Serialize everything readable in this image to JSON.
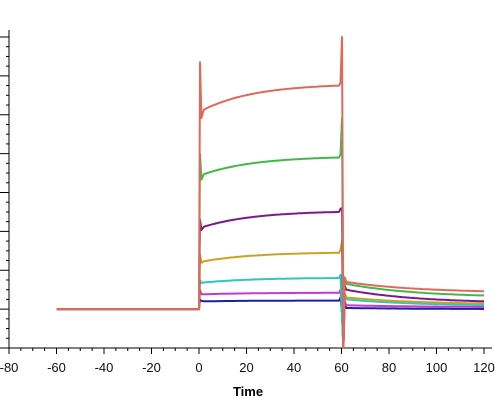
{
  "chart_data": {
    "type": "line",
    "xlabel": "Time",
    "ylabel": "",
    "xlim": [
      -80,
      120
    ],
    "ylim": [
      -1,
      7
    ],
    "grid": false,
    "legend": "none",
    "x_ticks": [
      -80,
      -60,
      -40,
      -20,
      0,
      20,
      40,
      60,
      80,
      100,
      120
    ],
    "x_tick_labels": [
      "-80",
      "-60",
      "-40",
      "-20",
      "0",
      "20",
      "40",
      "60",
      "80",
      "100",
      "120"
    ],
    "y_ticks": [
      -1,
      0,
      1,
      2,
      3,
      4,
      5,
      6,
      7
    ],
    "series": [
      {
        "color": "#1f1fa6",
        "baseline": 0.0,
        "plateau_start": 0.2,
        "plateau_end": 0.22,
        "spike_on": 0.25,
        "spike_off": -0.1,
        "dissoc_start": 0.03,
        "dissoc_end": 0.0
      },
      {
        "color": "#c43ad1",
        "baseline": 0.0,
        "plateau_start": 0.38,
        "plateau_end": 0.42,
        "spike_on": 0.5,
        "spike_off": -0.15,
        "dissoc_start": 0.1,
        "dissoc_end": 0.05
      },
      {
        "color": "#2ec6c6",
        "baseline": 0.0,
        "plateau_start": 0.68,
        "plateau_end": 0.8,
        "spike_on": 0.75,
        "spike_off": -0.2,
        "dissoc_start": 0.25,
        "dissoc_end": 0.08
      },
      {
        "color": "#c9a322",
        "baseline": 0.0,
        "plateau_start": 1.22,
        "plateau_end": 1.45,
        "spike_on": 1.4,
        "spike_off": 1.75,
        "dissoc_start": 0.3,
        "dissoc_end": 0.12
      },
      {
        "color": "#7b1a8c",
        "baseline": 0.0,
        "plateau_start": 2.1,
        "plateau_end": 2.5,
        "spike_on": 2.3,
        "spike_off": 2.6,
        "dissoc_start": 0.5,
        "dissoc_end": 0.15
      },
      {
        "color": "#42b84a",
        "baseline": 0.0,
        "plateau_start": 3.45,
        "plateau_end": 3.9,
        "spike_on": 4.0,
        "spike_off": 4.9,
        "dissoc_start": 0.65,
        "dissoc_end": 0.3
      },
      {
        "color": "#e06a5a",
        "baseline": 0.0,
        "plateau_start": 5.1,
        "plateau_end": 5.75,
        "spike_on": 6.35,
        "spike_off": 7.0,
        "dissoc_start": 0.7,
        "dissoc_end": 0.42
      }
    ]
  }
}
